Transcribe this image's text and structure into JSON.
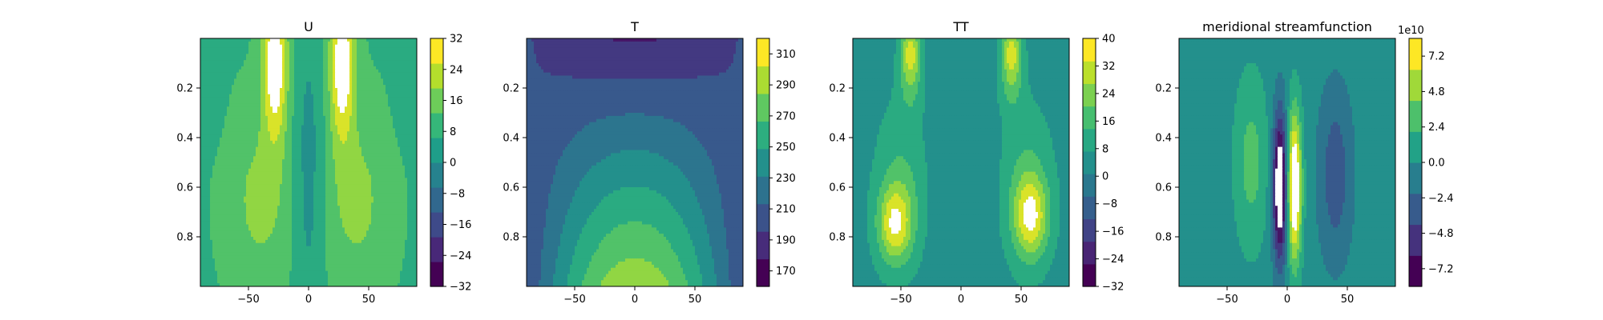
{
  "chart_data": [
    {
      "type": "contourf",
      "title": "U",
      "x_ticks": [
        -50,
        0,
        50
      ],
      "y_ticks": [
        0.2,
        0.4,
        0.6,
        0.8
      ],
      "xlim": [
        -90,
        90
      ],
      "ylim": [
        0.0,
        1.0
      ],
      "y_inverted": true,
      "colorbar_ticks": [
        "32",
        "24",
        "16",
        "8",
        "0",
        "−8",
        "−16",
        "−24",
        "−32"
      ],
      "colorbar_range": [
        -32,
        32
      ],
      "colormap": "viridis"
    },
    {
      "type": "contourf",
      "title": "T",
      "x_ticks": [
        -50,
        0,
        50
      ],
      "y_ticks": [
        0.2,
        0.4,
        0.6,
        0.8
      ],
      "xlim": [
        -90,
        90
      ],
      "ylim": [
        0.0,
        1.0
      ],
      "y_inverted": true,
      "colorbar_ticks": [
        "310",
        "290",
        "270",
        "250",
        "230",
        "210",
        "190",
        "170"
      ],
      "colorbar_range": [
        170,
        320
      ],
      "colormap": "viridis"
    },
    {
      "type": "contourf",
      "title": "TT",
      "x_ticks": [
        -50,
        0,
        50
      ],
      "y_ticks": [
        0.2,
        0.4,
        0.6,
        0.8
      ],
      "xlim": [
        -90,
        90
      ],
      "ylim": [
        0.0,
        1.0
      ],
      "y_inverted": true,
      "colorbar_ticks": [
        "40",
        "32",
        "24",
        "16",
        "8",
        "0",
        "−8",
        "−16",
        "−24",
        "−32"
      ],
      "colorbar_range": [
        -32,
        40
      ],
      "colormap": "viridis"
    },
    {
      "type": "contourf",
      "title": "meridional streamfunction",
      "x_ticks": [
        -50,
        0,
        50
      ],
      "y_ticks": [
        0.2,
        0.4,
        0.6,
        0.8
      ],
      "xlim": [
        -90,
        90
      ],
      "ylim": [
        0.0,
        1.0
      ],
      "y_inverted": true,
      "colorbar_ticks": [
        "7.2",
        "4.8",
        "2.4",
        "0.0",
        "−2.4",
        "−4.8",
        "−7.2"
      ],
      "colorbar_range": [
        -8.4,
        8.4
      ],
      "colorbar_offset": "1e10",
      "colormap": "viridis"
    }
  ]
}
